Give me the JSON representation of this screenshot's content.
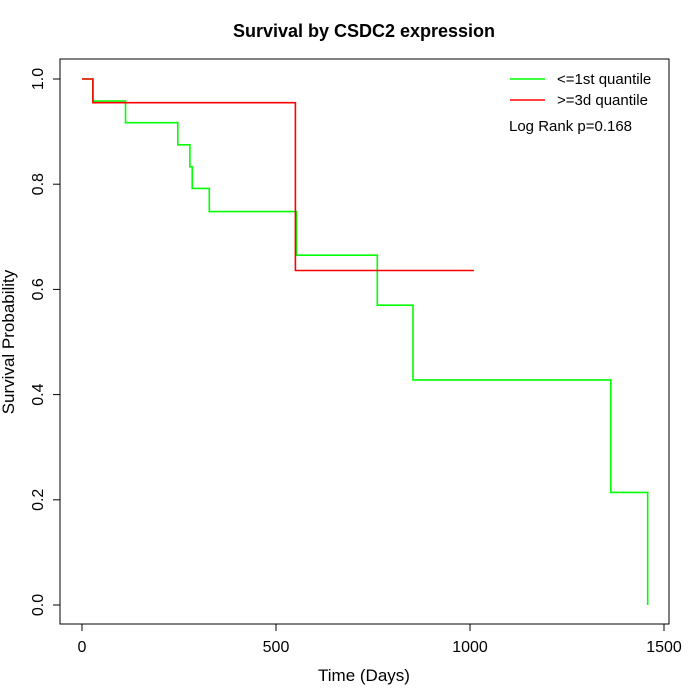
{
  "chart_data": {
    "type": "line",
    "title": "Survival by CSDC2 expression",
    "xlabel": "Time (Days)",
    "ylabel": "Survival Probability",
    "xlim": [
      0,
      1500
    ],
    "ylim": [
      0,
      1
    ],
    "xticks": [
      0,
      500,
      1000,
      1500
    ],
    "yticks": [
      0.0,
      0.2,
      0.4,
      0.6,
      0.8,
      1.0
    ],
    "xtick_labels": [
      "0",
      "500",
      "1000",
      "1500"
    ],
    "ytick_labels": [
      "0.0",
      "0.2",
      "0.4",
      "0.6",
      "0.8",
      "1.0"
    ],
    "grid": false,
    "legend_position": "top-right",
    "annotation": "Log Rank p=0.168",
    "series": [
      {
        "name": "<=1st quantile",
        "color": "#00ff00",
        "x": [
          0,
          28,
          28,
          112,
          112,
          247,
          247,
          278,
          278,
          282,
          282,
          284,
          284,
          328,
          328,
          553,
          553,
          761,
          761,
          853,
          853,
          1363,
          1363,
          1458,
          1458
        ],
        "y": [
          1.0,
          1.0,
          0.958,
          0.958,
          0.917,
          0.917,
          0.875,
          0.875,
          0.833,
          0.833,
          0.833,
          0.833,
          0.792,
          0.792,
          0.748,
          0.748,
          0.665,
          0.665,
          0.57,
          0.57,
          0.428,
          0.428,
          0.214,
          0.214,
          0.0
        ]
      },
      {
        "name": ">=3d quantile",
        "color": "#ff0000",
        "x": [
          0,
          28,
          28,
          550,
          550,
          1010
        ],
        "y": [
          1.0,
          1.0,
          0.955,
          0.955,
          0.636,
          0.636
        ]
      }
    ]
  }
}
